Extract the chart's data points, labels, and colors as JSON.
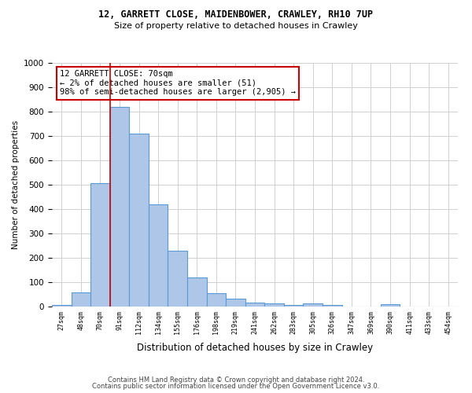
{
  "title_line1": "12, GARRETT CLOSE, MAIDENBOWER, CRAWLEY, RH10 7UP",
  "title_line2": "Size of property relative to detached houses in Crawley",
  "xlabel": "Distribution of detached houses by size in Crawley",
  "ylabel": "Number of detached properties",
  "footer_line1": "Contains HM Land Registry data © Crown copyright and database right 2024.",
  "footer_line2": "Contains public sector information licensed under the Open Government Licence v3.0.",
  "bin_labels": [
    "27sqm",
    "48sqm",
    "70sqm",
    "91sqm",
    "112sqm",
    "134sqm",
    "155sqm",
    "176sqm",
    "198sqm",
    "219sqm",
    "241sqm",
    "262sqm",
    "283sqm",
    "305sqm",
    "326sqm",
    "347sqm",
    "369sqm",
    "390sqm",
    "411sqm",
    "433sqm",
    "454sqm"
  ],
  "bar_values": [
    8,
    57,
    505,
    820,
    710,
    418,
    230,
    118,
    55,
    32,
    17,
    14,
    8,
    14,
    7,
    0,
    0,
    10,
    0,
    0,
    0
  ],
  "bar_color": "#aec6e8",
  "bar_edge_color": "#5b9bd5",
  "annotation_text": "12 GARRETT CLOSE: 70sqm\n← 2% of detached houses are smaller (51)\n98% of semi-detached houses are larger (2,905) →",
  "annotation_box_color": "#ffffff",
  "annotation_box_edge_color": "#cc0000",
  "vline_color": "#cc0000",
  "ylim": [
    0,
    1000
  ],
  "yticks": [
    0,
    100,
    200,
    300,
    400,
    500,
    600,
    700,
    800,
    900,
    1000
  ],
  "background_color": "#ffffff",
  "grid_color": "#d0d0d0"
}
